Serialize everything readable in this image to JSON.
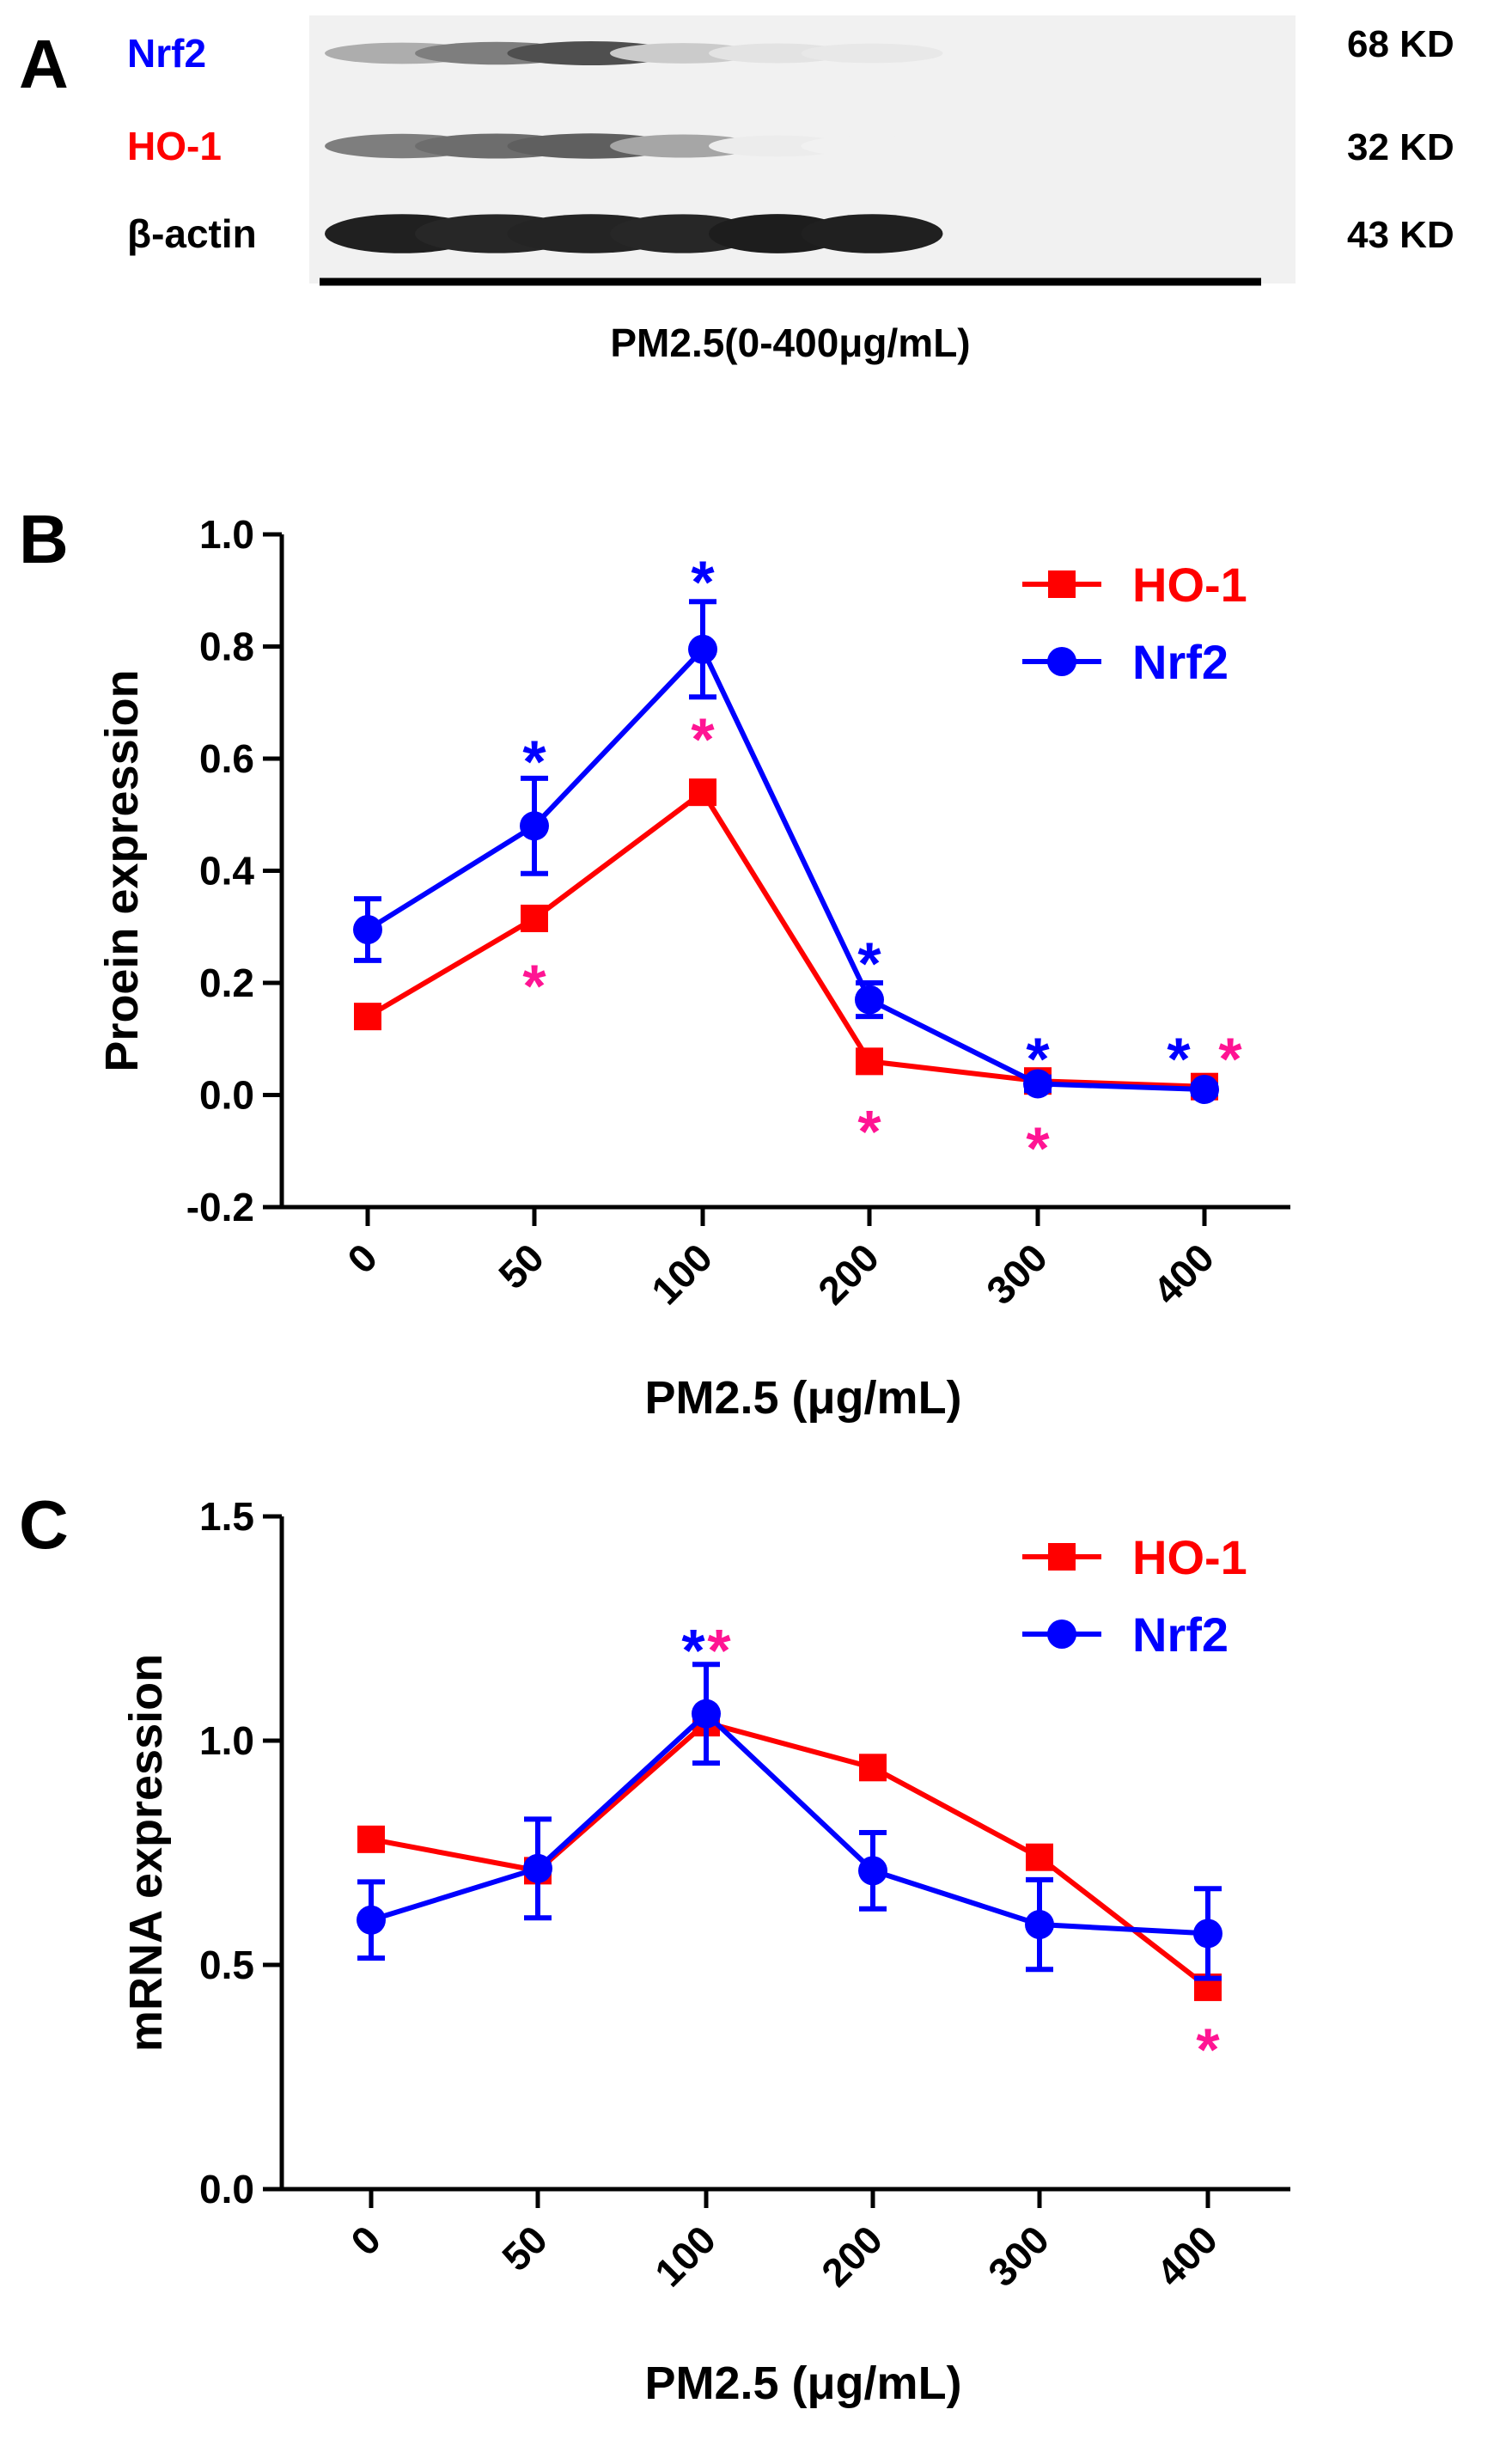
{
  "colors": {
    "ho1": "#ff0000",
    "nrf2": "#0000ff",
    "star_pink": "#ff1493",
    "axis": "#000000"
  },
  "panel_a": {
    "letter": "A",
    "bands": [
      {
        "label": "Nrf2",
        "size": "68 KD",
        "label_color": "#0000ff",
        "intensity": [
          0.35,
          0.55,
          0.75,
          0.22,
          0.12,
          0.1
        ]
      },
      {
        "label": "HO-1",
        "size": "32 KD",
        "label_color": "#ff0000",
        "intensity": [
          0.55,
          0.62,
          0.68,
          0.38,
          0.08,
          0.06
        ]
      },
      {
        "label": "β-actin",
        "size": "43 KD",
        "label_color": "#000000",
        "intensity": [
          0.95,
          0.92,
          0.93,
          0.92,
          0.96,
          0.95
        ]
      }
    ],
    "treatment_label": "PM2.5(0-400μg/mL)"
  },
  "chart_data": [
    {
      "panel": "B",
      "type": "line",
      "xlabel": "PM2.5 (μg/mL)",
      "ylabel": "Proein expression",
      "categories": [
        "0",
        "50",
        "100",
        "200",
        "300",
        "400"
      ],
      "ylim": [
        -0.2,
        1.0
      ],
      "yticks": [
        "-0.2",
        "0.0",
        "0.2",
        "0.4",
        "0.6",
        "0.8",
        "1.0"
      ],
      "ytick_values": [
        -0.2,
        0.0,
        0.2,
        0.4,
        0.6,
        0.8,
        1.0
      ],
      "legend": {
        "position": "top-right",
        "entries": [
          "HO-1",
          "Nrf2"
        ]
      },
      "series": [
        {
          "name": "HO-1",
          "values": [
            0.14,
            0.315,
            0.54,
            0.06,
            0.025,
            0.015
          ],
          "errors": [
            0,
            0,
            0,
            0,
            0,
            0
          ]
        },
        {
          "name": "Nrf2",
          "values": [
            0.295,
            0.48,
            0.795,
            0.17,
            0.02,
            0.01
          ],
          "errors": [
            0.055,
            0.085,
            0.085,
            0.03,
            0.012,
            0.008
          ]
        }
      ],
      "annotations": [
        {
          "text": "*",
          "color": "nrf2",
          "category": 1,
          "value": 0.61
        },
        {
          "text": "*",
          "color": "pink",
          "category": 1,
          "value": 0.21
        },
        {
          "text": "*",
          "color": "nrf2",
          "category": 2,
          "value": 0.93
        },
        {
          "text": "*",
          "color": "pink",
          "category": 2,
          "value": 0.65
        },
        {
          "text": "*",
          "color": "nrf2",
          "category": 3,
          "value": 0.25
        },
        {
          "text": "*",
          "color": "pink",
          "category": 3,
          "value": -0.05
        },
        {
          "text": "*",
          "color": "nrf2",
          "category": 4,
          "value": 0.08
        },
        {
          "text": "*",
          "color": "pink",
          "category": 4,
          "value": -0.08
        },
        {
          "text": "*",
          "color": "nrf2",
          "category": 5,
          "value": 0.08,
          "offset": -0.3
        },
        {
          "text": "*",
          "color": "pink",
          "category": 5,
          "value": 0.08,
          "offset": 0.3
        }
      ]
    },
    {
      "panel": "C",
      "type": "line",
      "xlabel": "PM2.5 (μg/mL)",
      "ylabel": "mRNA expression",
      "categories": [
        "0",
        "50",
        "100",
        "200",
        "300",
        "400"
      ],
      "ylim": [
        0.0,
        1.5
      ],
      "yticks": [
        "0.0",
        "0.5",
        "1.0",
        "1.5"
      ],
      "ytick_values": [
        0.0,
        0.5,
        1.0,
        1.5
      ],
      "legend": {
        "position": "top-right",
        "entries": [
          "HO-1",
          "Nrf2"
        ]
      },
      "series": [
        {
          "name": "HO-1",
          "values": [
            0.78,
            0.71,
            1.04,
            0.94,
            0.74,
            0.45
          ],
          "errors": [
            0,
            0,
            0,
            0,
            0,
            0
          ]
        },
        {
          "name": "Nrf2",
          "values": [
            0.6,
            0.715,
            1.06,
            0.71,
            0.59,
            0.57
          ],
          "errors": [
            0.085,
            0.11,
            0.11,
            0.085,
            0.1,
            0.1
          ]
        }
      ],
      "annotations": [
        {
          "text": "*",
          "color": "nrf2",
          "category": 2,
          "value": 1.22,
          "offset": -0.15
        },
        {
          "text": "*",
          "color": "pink",
          "category": 2,
          "value": 1.22,
          "offset": 0.15
        },
        {
          "text": "*",
          "color": "pink",
          "category": 5,
          "value": 0.33
        }
      ]
    }
  ]
}
